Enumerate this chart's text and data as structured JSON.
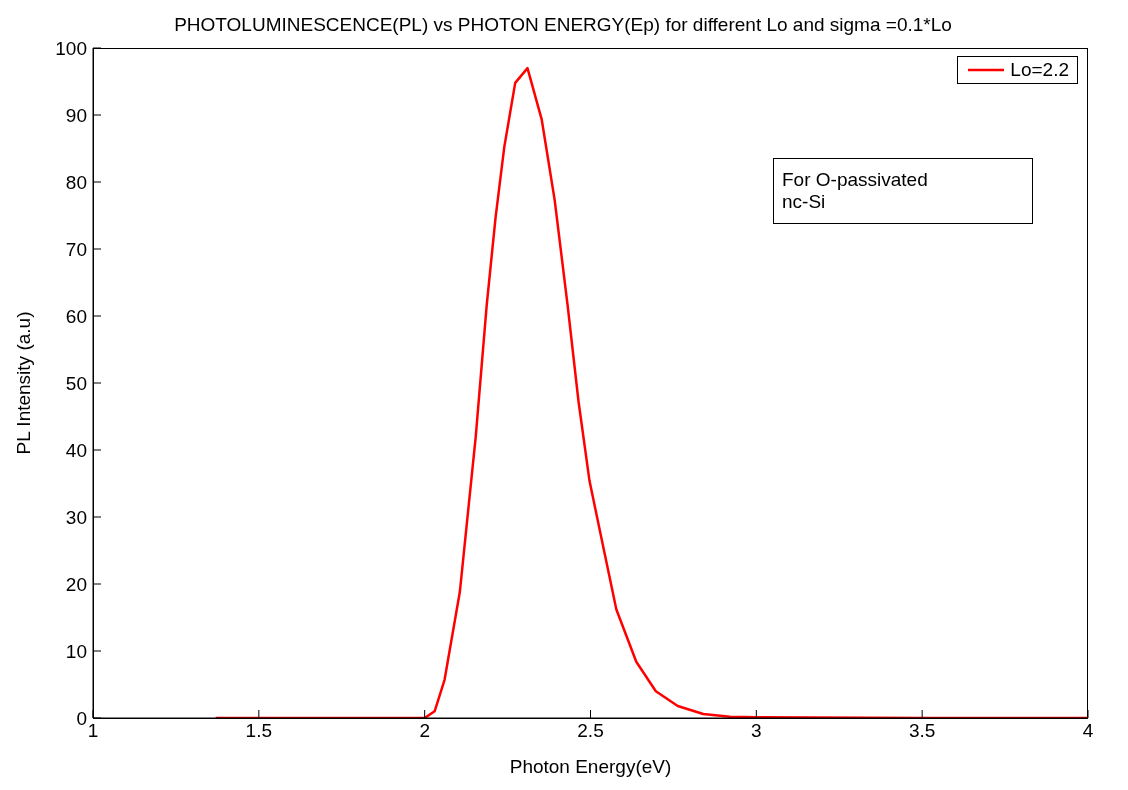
{
  "chart_data": {
    "type": "line",
    "title": "PHOTOLUMINESCENCE(PL) vs PHOTON ENERGY(Ep) for different Lo and sigma =0.1*Lo",
    "xlabel": "Photon Energy(eV)",
    "ylabel": "PL Intensity (a.u)",
    "x": [
      1.37,
      1.7,
      2.0,
      2.03,
      2.06,
      2.106,
      2.154,
      2.187,
      2.214,
      2.24,
      2.273,
      2.31,
      2.353,
      2.392,
      2.431,
      2.464,
      2.497,
      2.539,
      2.578,
      2.638,
      2.697,
      2.763,
      2.84,
      2.92,
      3.0,
      3.5,
      4.0
    ],
    "series": [
      {
        "name": "Lo=2.2",
        "color": "#ff0000",
        "values": [
          0,
          0,
          0,
          1,
          5.7,
          18.8,
          42,
          61.6,
          74.8,
          85.2,
          94.8,
          97,
          89.3,
          77.3,
          61.6,
          47.2,
          35.4,
          25.4,
          16.2,
          8.4,
          4,
          1.8,
          0.6,
          0.2,
          0.1,
          0,
          0
        ]
      }
    ],
    "xlim": [
      1,
      4
    ],
    "xticks": [
      1,
      1.5,
      2,
      2.5,
      3,
      3.5,
      4
    ],
    "ylim": [
      0,
      100
    ],
    "yticks": [
      0,
      10,
      20,
      30,
      40,
      50,
      60,
      70,
      80,
      90,
      100
    ],
    "grid": false,
    "legend": "top right",
    "marker": "none",
    "line_style": "solid",
    "annotations": [
      "For O-passivated\nnc-Si"
    ]
  }
}
